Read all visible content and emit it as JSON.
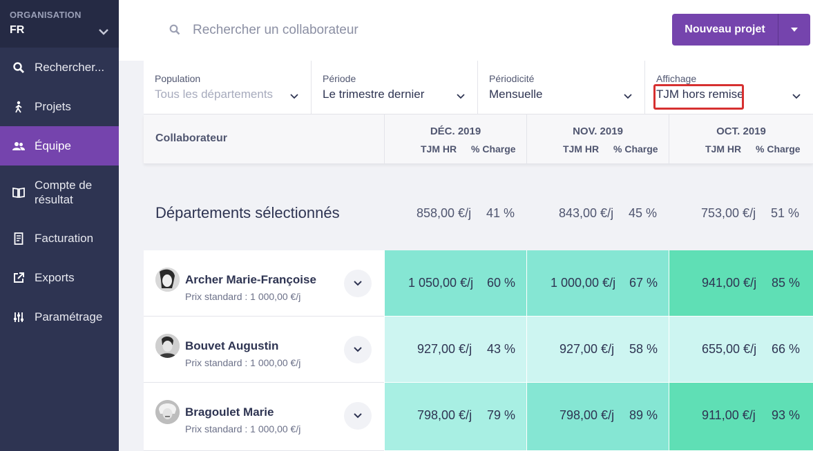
{
  "sidebar": {
    "org_label": "ORGANISATION",
    "org_value": "FR",
    "items": [
      {
        "label": "Rechercher..."
      },
      {
        "label": "Projets"
      },
      {
        "label": "Équipe"
      },
      {
        "label": "Compte de résultat"
      },
      {
        "label": "Facturation"
      },
      {
        "label": "Exports"
      },
      {
        "label": "Paramétrage"
      }
    ]
  },
  "topbar": {
    "search_placeholder": "Rechercher un collaborateur",
    "new_project_label": "Nouveau projet"
  },
  "filters": [
    {
      "label": "Population",
      "value": "Tous les départements"
    },
    {
      "label": "Période",
      "value": "Le trimestre dernier"
    },
    {
      "label": "Périodicité",
      "value": "Mensuelle"
    },
    {
      "label": "Affichage",
      "value": "TJM hors remise"
    }
  ],
  "table": {
    "collab_header": "Collaborateur",
    "sub_tjm": "TJM HR",
    "sub_charge": "% Charge",
    "months": [
      "DÉC. 2019",
      "NOV. 2019",
      "OCT. 2019"
    ],
    "summary": {
      "label": "Départements sélectionnés",
      "cells": [
        {
          "tjm": "858,00 €/j",
          "pct": "41 %"
        },
        {
          "tjm": "843,00 €/j",
          "pct": "45 %"
        },
        {
          "tjm": "753,00 €/j",
          "pct": "51 %"
        }
      ]
    },
    "rows": [
      {
        "name": "Archer Marie-Françoise",
        "price": "Prix standard : 1 000,00 €/j",
        "cells": [
          {
            "tjm": "1 050,00 €/j",
            "pct": "60 %",
            "color": "#85e6d3"
          },
          {
            "tjm": "1 000,00 €/j",
            "pct": "67 %",
            "color": "#85e6d3"
          },
          {
            "tjm": "941,00 €/j",
            "pct": "85 %",
            "color": "#5fdfb5"
          }
        ]
      },
      {
        "name": "Bouvet Augustin",
        "price": "Prix standard : 1 000,00 €/j",
        "cells": [
          {
            "tjm": "927,00 €/j",
            "pct": "43 %",
            "color": "#cdf5f1"
          },
          {
            "tjm": "927,00 €/j",
            "pct": "58 %",
            "color": "#cdf5f1"
          },
          {
            "tjm": "655,00 €/j",
            "pct": "66 %",
            "color": "#cdf5f1"
          }
        ]
      },
      {
        "name": "Bragoulet Marie",
        "price": "Prix standard : 1 000,00 €/j",
        "cells": [
          {
            "tjm": "798,00 €/j",
            "pct": "79 %",
            "color": "#a8efe3"
          },
          {
            "tjm": "798,00 €/j",
            "pct": "89 %",
            "color": "#85e6d3"
          },
          {
            "tjm": "911,00 €/j",
            "pct": "93 %",
            "color": "#5fdfb5"
          }
        ]
      }
    ]
  }
}
